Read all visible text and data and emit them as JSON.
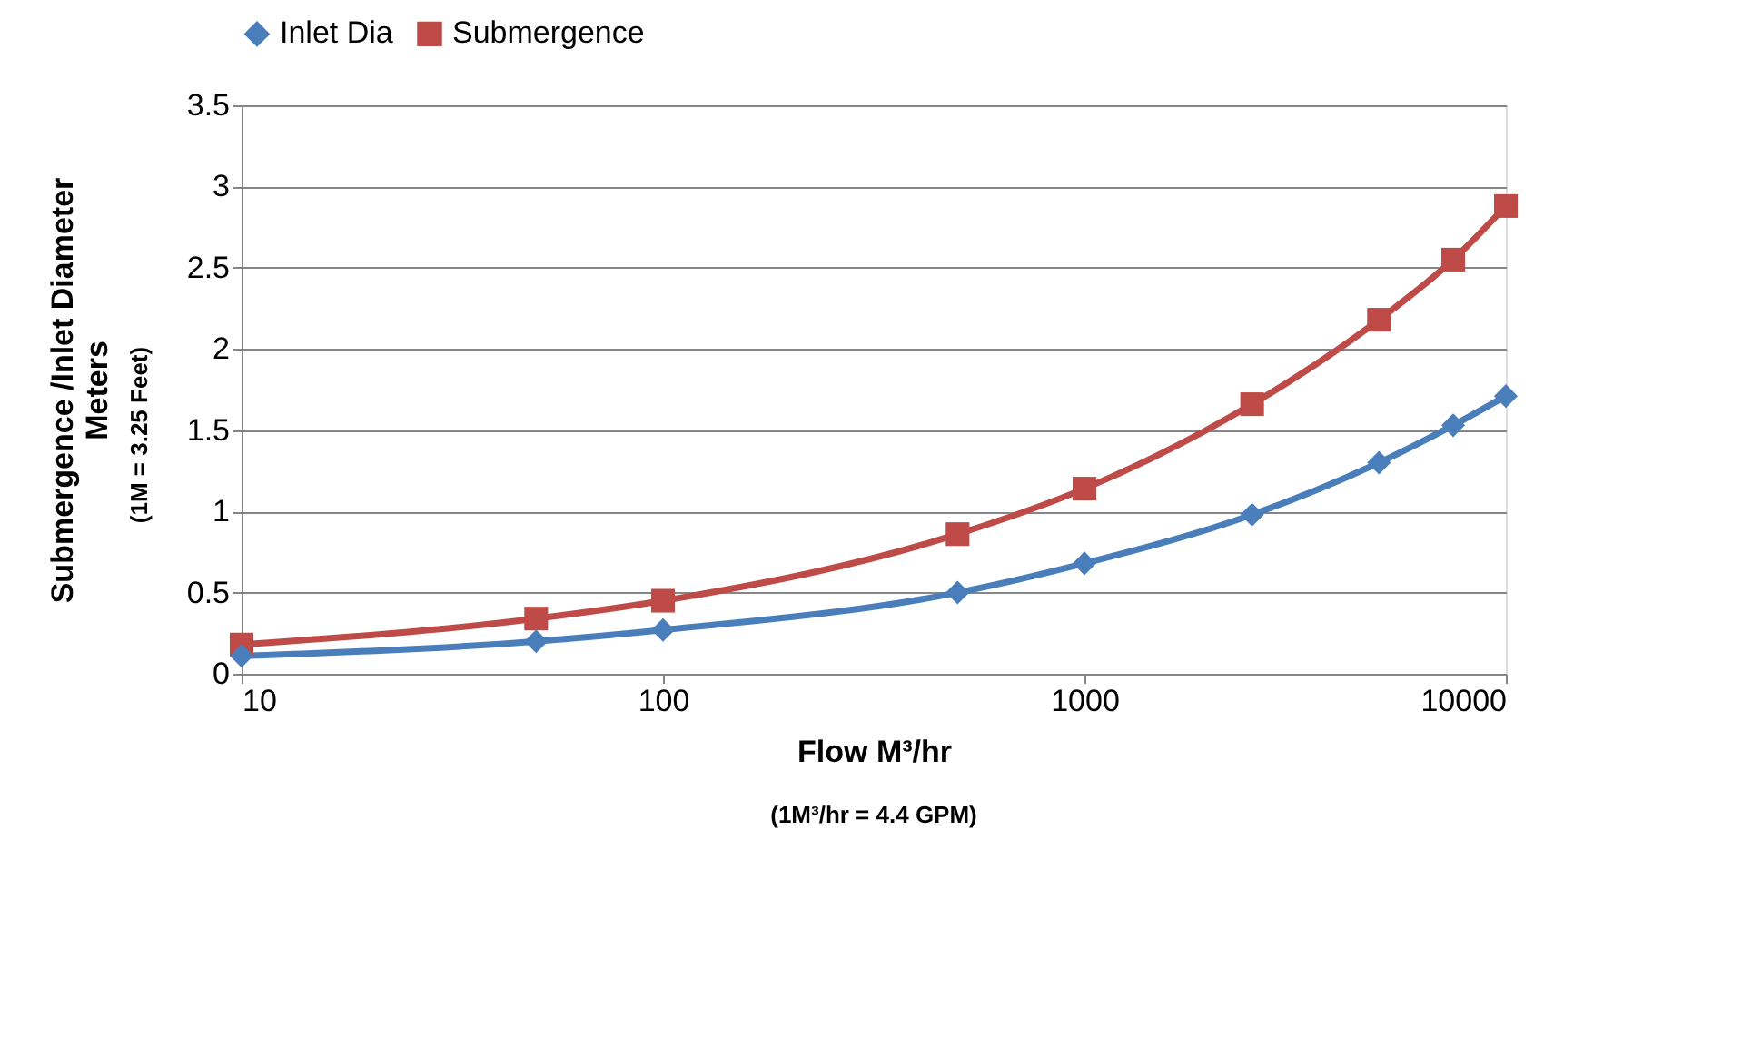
{
  "chart_data": {
    "type": "line",
    "xlabel": "Flow M³/hr",
    "ylabel": "Submergence /Inlet Diameter\nMeters",
    "annotations": [
      "(1M³/hr = 4.4 GPM)",
      "(1M = 3.25 Feet)"
    ],
    "x": [
      10,
      50,
      100,
      500,
      1000,
      2500,
      5000,
      7500,
      10000
    ],
    "series": [
      {
        "name": "Inlet Dia",
        "color": "#4a7ebb",
        "marker": "diamond",
        "values": [
          0.11,
          0.2,
          0.27,
          0.5,
          0.68,
          0.98,
          1.3,
          1.53,
          1.71
        ]
      },
      {
        "name": "Submergence",
        "color": "#be4b48",
        "marker": "square",
        "values": [
          0.18,
          0.34,
          0.45,
          0.86,
          1.14,
          1.66,
          2.18,
          2.55,
          2.88
        ]
      }
    ],
    "log": "x",
    "xlim": [
      10,
      10000
    ],
    "xticks": [
      10,
      100,
      1000,
      10000
    ],
    "ylim": [
      0,
      3.5
    ],
    "yticks": [
      0,
      0.5,
      1,
      1.5,
      2,
      2.5,
      3,
      3.5
    ],
    "grid": "y",
    "legend": "top",
    "line_style": "solid"
  }
}
